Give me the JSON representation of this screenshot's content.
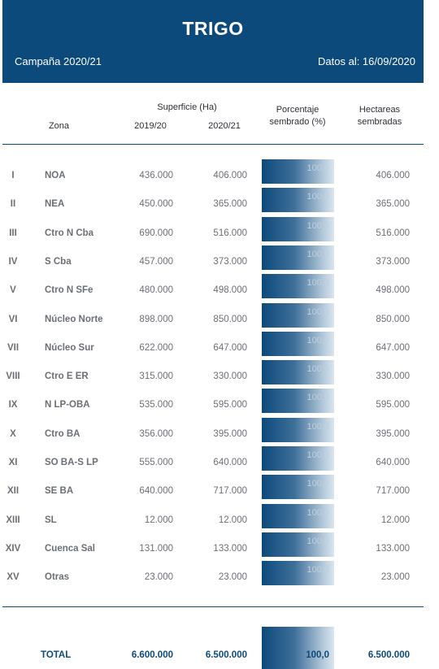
{
  "header": {
    "title": "TRIGO",
    "campaign": "Campaña 2020/21",
    "date": "Datos al: 16/09/2020"
  },
  "columns": {
    "zona": "Zona",
    "superficie": "Superficie (Ha)",
    "y1": "2019/20",
    "y2": "2020/21",
    "porcentaje_1": "Porcentaje",
    "porcentaje_2": "sembrado (%)",
    "hectareas_1": "Hectareas",
    "hectareas_2": "sembradas"
  },
  "rows": [
    {
      "num": "I",
      "zona": "NOA",
      "y1": "436.000",
      "y2": "406.000",
      "pct": "100,0",
      "sembradas": "406.000"
    },
    {
      "num": "II",
      "zona": "NEA",
      "y1": "450.000",
      "y2": "365.000",
      "pct": "100,0",
      "sembradas": "365.000"
    },
    {
      "num": "III",
      "zona": "Ctro N Cba",
      "y1": "690.000",
      "y2": "516.000",
      "pct": "100,0",
      "sembradas": "516.000"
    },
    {
      "num": "IV",
      "zona": "S Cba",
      "y1": "457.000",
      "y2": "373.000",
      "pct": "100,0",
      "sembradas": "373.000"
    },
    {
      "num": "V",
      "zona": "Ctro N SFe",
      "y1": "480.000",
      "y2": "498.000",
      "pct": "100,0",
      "sembradas": "498.000"
    },
    {
      "num": "VI",
      "zona": "Núcleo Norte",
      "y1": "898.000",
      "y2": "850.000",
      "pct": "100,0",
      "sembradas": "850.000"
    },
    {
      "num": "VII",
      "zona": "Núcleo Sur",
      "y1": "622.000",
      "y2": "647.000",
      "pct": "100,0",
      "sembradas": "647.000"
    },
    {
      "num": "VIII",
      "zona": "Ctro E ER",
      "y1": "315.000",
      "y2": "330.000",
      "pct": "100,0",
      "sembradas": "330.000"
    },
    {
      "num": "IX",
      "zona": "N LP-OBA",
      "y1": "535.000",
      "y2": "595.000",
      "pct": "100,0",
      "sembradas": "595.000"
    },
    {
      "num": "X",
      "zona": "Ctro BA",
      "y1": "356.000",
      "y2": "395.000",
      "pct": "100,0",
      "sembradas": "395.000"
    },
    {
      "num": "XI",
      "zona": "SO BA-S LP",
      "y1": "555.000",
      "y2": "640.000",
      "pct": "100,0",
      "sembradas": "640.000"
    },
    {
      "num": "XII",
      "zona": "SE BA",
      "y1": "640.000",
      "y2": "717.000",
      "pct": "100,0",
      "sembradas": "717.000"
    },
    {
      "num": "XIII",
      "zona": "SL",
      "y1": "12.000",
      "y2": "12.000",
      "pct": "100,0",
      "sembradas": "12.000"
    },
    {
      "num": "XIV",
      "zona": "Cuenca Sal",
      "y1": "131.000",
      "y2": "133.000",
      "pct": "100,0",
      "sembradas": "133.000"
    },
    {
      "num": "XV",
      "zona": "Otras",
      "y1": "23.000",
      "y2": "23.000",
      "pct": "100,0",
      "sembradas": "23.000"
    }
  ],
  "total": {
    "label": "TOTAL",
    "y1": "6.600.000",
    "y2": "6.500.000",
    "pct": "100,0",
    "sembradas": "6.500.000"
  },
  "colors": {
    "brand": "#0c4a7b",
    "text": "#6b6f76"
  }
}
